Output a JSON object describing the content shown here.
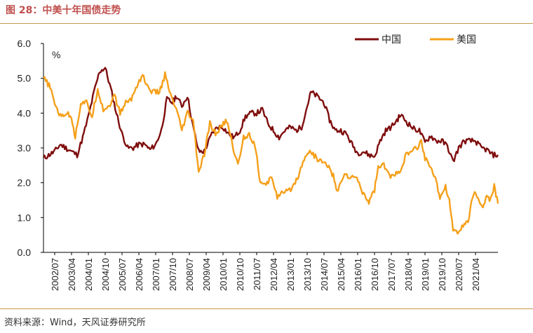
{
  "header": {
    "title": "图 28：中美十年国债走势"
  },
  "footer": {
    "source": "资料来源：Wind，天风证券研究所"
  },
  "chart_data": {
    "type": "line",
    "title": "",
    "ylabel": "%",
    "ylim": [
      0,
      6
    ],
    "yticks": [
      "0.0",
      "1.0",
      "2.0",
      "3.0",
      "4.0",
      "5.0",
      "6.0"
    ],
    "x_tick_labels": [
      "2002/07",
      "2003/04",
      "2004/01",
      "2004/10",
      "2005/07",
      "2006/04",
      "2007/01",
      "2007/10",
      "2008/07",
      "2009/04",
      "2010/01",
      "2010/10",
      "2011/07",
      "2012/04",
      "2013/01",
      "2013/10",
      "2014/07",
      "2015/04",
      "2016/01",
      "2016/10",
      "2017/07",
      "2018/04",
      "2019/01",
      "2019/10",
      "2020/07",
      "2021/04"
    ],
    "x_range": [
      "2002/01",
      "2022/04"
    ],
    "legend_position": "top-right",
    "grid": false,
    "series": [
      {
        "name": "中国",
        "color": "#7f0d0d",
        "points": [
          [
            "2002/01",
            2.7
          ],
          [
            "2002/07",
            2.9
          ],
          [
            "2002/10",
            3.1
          ],
          [
            "2003/01",
            3.0
          ],
          [
            "2003/04",
            2.9
          ],
          [
            "2003/07",
            2.8
          ],
          [
            "2003/10",
            3.3
          ],
          [
            "2004/01",
            3.9
          ],
          [
            "2004/04",
            4.6
          ],
          [
            "2004/07",
            5.2
          ],
          [
            "2004/10",
            5.3
          ],
          [
            "2005/01",
            4.7
          ],
          [
            "2005/04",
            4.0
          ],
          [
            "2005/07",
            3.4
          ],
          [
            "2005/10",
            3.0
          ],
          [
            "2006/01",
            3.0
          ],
          [
            "2006/04",
            3.1
          ],
          [
            "2006/07",
            3.1
          ],
          [
            "2006/10",
            2.95
          ],
          [
            "2007/01",
            3.1
          ],
          [
            "2007/04",
            3.5
          ],
          [
            "2007/07",
            4.4
          ],
          [
            "2007/10",
            4.3
          ],
          [
            "2007/12",
            4.5
          ],
          [
            "2008/03",
            4.2
          ],
          [
            "2008/06",
            4.5
          ],
          [
            "2008/09",
            3.6
          ],
          [
            "2008/12",
            2.9
          ],
          [
            "2009/03",
            2.9
          ],
          [
            "2009/07",
            3.4
          ],
          [
            "2009/10",
            3.6
          ],
          [
            "2010/01",
            3.6
          ],
          [
            "2010/04",
            3.4
          ],
          [
            "2010/07",
            3.3
          ],
          [
            "2010/10",
            3.5
          ],
          [
            "2011/01",
            3.9
          ],
          [
            "2011/04",
            4.0
          ],
          [
            "2011/07",
            4.0
          ],
          [
            "2011/10",
            4.1
          ],
          [
            "2012/01",
            3.7
          ],
          [
            "2012/04",
            3.5
          ],
          [
            "2012/07",
            3.3
          ],
          [
            "2012/10",
            3.5
          ],
          [
            "2013/01",
            3.6
          ],
          [
            "2013/04",
            3.5
          ],
          [
            "2013/07",
            3.6
          ],
          [
            "2013/10",
            4.2
          ],
          [
            "2013/12",
            4.6
          ],
          [
            "2014/03",
            4.5
          ],
          [
            "2014/07",
            4.3
          ],
          [
            "2014/10",
            3.8
          ],
          [
            "2015/01",
            3.5
          ],
          [
            "2015/04",
            3.5
          ],
          [
            "2015/07",
            3.4
          ],
          [
            "2015/10",
            3.1
          ],
          [
            "2016/01",
            2.85
          ],
          [
            "2016/04",
            2.9
          ],
          [
            "2016/07",
            2.8
          ],
          [
            "2016/10",
            2.75
          ],
          [
            "2017/01",
            3.2
          ],
          [
            "2017/04",
            3.5
          ],
          [
            "2017/07",
            3.6
          ],
          [
            "2017/10",
            3.8
          ],
          [
            "2017/12",
            3.95
          ],
          [
            "2018/04",
            3.7
          ],
          [
            "2018/07",
            3.55
          ],
          [
            "2018/10",
            3.5
          ],
          [
            "2019/01",
            3.15
          ],
          [
            "2019/04",
            3.35
          ],
          [
            "2019/07",
            3.2
          ],
          [
            "2019/10",
            3.2
          ],
          [
            "2020/01",
            3.05
          ],
          [
            "2020/04",
            2.6
          ],
          [
            "2020/07",
            3.0
          ],
          [
            "2020/10",
            3.2
          ],
          [
            "2021/01",
            3.2
          ],
          [
            "2021/04",
            3.2
          ],
          [
            "2021/07",
            3.0
          ],
          [
            "2021/10",
            2.95
          ],
          [
            "2022/01",
            2.8
          ],
          [
            "2022/04",
            2.8
          ]
        ]
      },
      {
        "name": "美国",
        "color": "#f5a01a",
        "points": [
          [
            "2002/01",
            5.0
          ],
          [
            "2002/04",
            4.8
          ],
          [
            "2002/07",
            4.3
          ],
          [
            "2002/10",
            3.9
          ],
          [
            "2003/01",
            4.0
          ],
          [
            "2003/04",
            3.9
          ],
          [
            "2003/06",
            3.3
          ],
          [
            "2003/09",
            4.3
          ],
          [
            "2003/12",
            4.3
          ],
          [
            "2004/03",
            3.9
          ],
          [
            "2004/06",
            4.7
          ],
          [
            "2004/09",
            4.1
          ],
          [
            "2004/12",
            4.2
          ],
          [
            "2005/03",
            4.5
          ],
          [
            "2005/06",
            4.0
          ],
          [
            "2005/09",
            4.3
          ],
          [
            "2005/12",
            4.4
          ],
          [
            "2006/03",
            4.8
          ],
          [
            "2006/06",
            5.1
          ],
          [
            "2006/09",
            4.7
          ],
          [
            "2006/12",
            4.6
          ],
          [
            "2007/03",
            4.6
          ],
          [
            "2007/06",
            5.1
          ],
          [
            "2007/09",
            4.5
          ],
          [
            "2007/12",
            4.1
          ],
          [
            "2008/03",
            3.5
          ],
          [
            "2008/06",
            4.0
          ],
          [
            "2008/09",
            3.8
          ],
          [
            "2008/12",
            2.3
          ],
          [
            "2009/03",
            2.8
          ],
          [
            "2009/06",
            3.7
          ],
          [
            "2009/09",
            3.4
          ],
          [
            "2009/12",
            3.6
          ],
          [
            "2010/03",
            3.8
          ],
          [
            "2010/06",
            3.1
          ],
          [
            "2010/09",
            2.5
          ],
          [
            "2010/12",
            3.3
          ],
          [
            "2011/03",
            3.4
          ],
          [
            "2011/06",
            3.1
          ],
          [
            "2011/09",
            2.0
          ],
          [
            "2011/12",
            1.9
          ],
          [
            "2012/03",
            2.2
          ],
          [
            "2012/06",
            1.6
          ],
          [
            "2012/09",
            1.7
          ],
          [
            "2012/12",
            1.75
          ],
          [
            "2013/03",
            1.95
          ],
          [
            "2013/06",
            2.3
          ],
          [
            "2013/09",
            2.8
          ],
          [
            "2013/12",
            2.9
          ],
          [
            "2014/03",
            2.7
          ],
          [
            "2014/06",
            2.6
          ],
          [
            "2014/09",
            2.5
          ],
          [
            "2014/12",
            2.2
          ],
          [
            "2015/02",
            1.7
          ],
          [
            "2015/06",
            2.3
          ],
          [
            "2015/09",
            2.1
          ],
          [
            "2015/12",
            2.2
          ],
          [
            "2016/03",
            1.8
          ],
          [
            "2016/07",
            1.45
          ],
          [
            "2016/10",
            1.8
          ],
          [
            "2016/12",
            2.45
          ],
          [
            "2017/03",
            2.5
          ],
          [
            "2017/06",
            2.2
          ],
          [
            "2017/09",
            2.2
          ],
          [
            "2017/12",
            2.4
          ],
          [
            "2018/03",
            2.8
          ],
          [
            "2018/06",
            2.9
          ],
          [
            "2018/09",
            3.0
          ],
          [
            "2018/11",
            3.2
          ],
          [
            "2019/01",
            2.7
          ],
          [
            "2019/04",
            2.5
          ],
          [
            "2019/07",
            2.0
          ],
          [
            "2019/09",
            1.6
          ],
          [
            "2019/12",
            1.9
          ],
          [
            "2020/02",
            1.5
          ],
          [
            "2020/04",
            0.65
          ],
          [
            "2020/07",
            0.6
          ],
          [
            "2020/10",
            0.8
          ],
          [
            "2020/12",
            0.9
          ],
          [
            "2021/03",
            1.7
          ],
          [
            "2021/06",
            1.5
          ],
          [
            "2021/08",
            1.3
          ],
          [
            "2021/10",
            1.6
          ],
          [
            "2021/12",
            1.5
          ],
          [
            "2022/02",
            1.9
          ],
          [
            "2022/04",
            1.4
          ]
        ]
      }
    ]
  }
}
